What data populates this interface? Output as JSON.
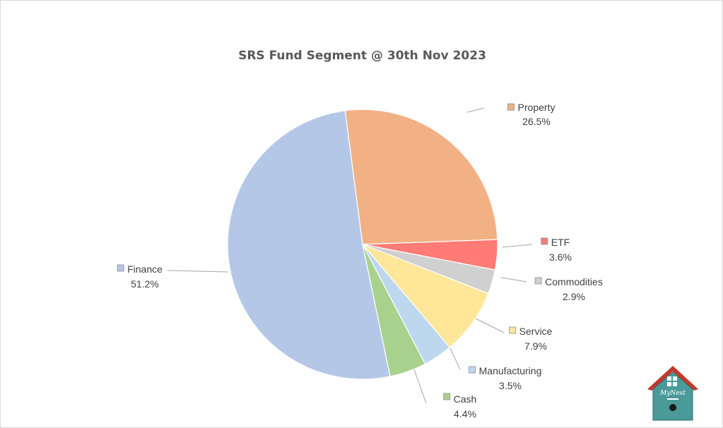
{
  "chart_data": {
    "type": "pie",
    "title": "SRS Fund Segment @ 30th Nov 2023",
    "slices": [
      {
        "label": "Property",
        "value": 26.5,
        "pct_label": "26.5%",
        "color": "#F2B184"
      },
      {
        "label": "ETF",
        "value": 3.6,
        "pct_label": "3.6%",
        "color": "#FF7B75"
      },
      {
        "label": "Commodities",
        "value": 2.9,
        "pct_label": "2.9%",
        "color": "#D0D0D0"
      },
      {
        "label": "Service",
        "value": 7.9,
        "pct_label": "7.9%",
        "color": "#FFE699"
      },
      {
        "label": "Manufacturing",
        "value": 3.5,
        "pct_label": "3.5%",
        "color": "#BDD7EE"
      },
      {
        "label": "Cash",
        "value": 4.4,
        "pct_label": "4.4%",
        "color": "#A9D18E"
      },
      {
        "label": "Finance",
        "value": 51.2,
        "pct_label": "51.2%",
        "color": "#B4C7E7"
      }
    ],
    "legend": "data-labels",
    "start_direction": "top, clockwise"
  },
  "logo": {
    "text": "MyNest",
    "roof_color": "#C0392B",
    "body_color": "#4A9A9A"
  }
}
